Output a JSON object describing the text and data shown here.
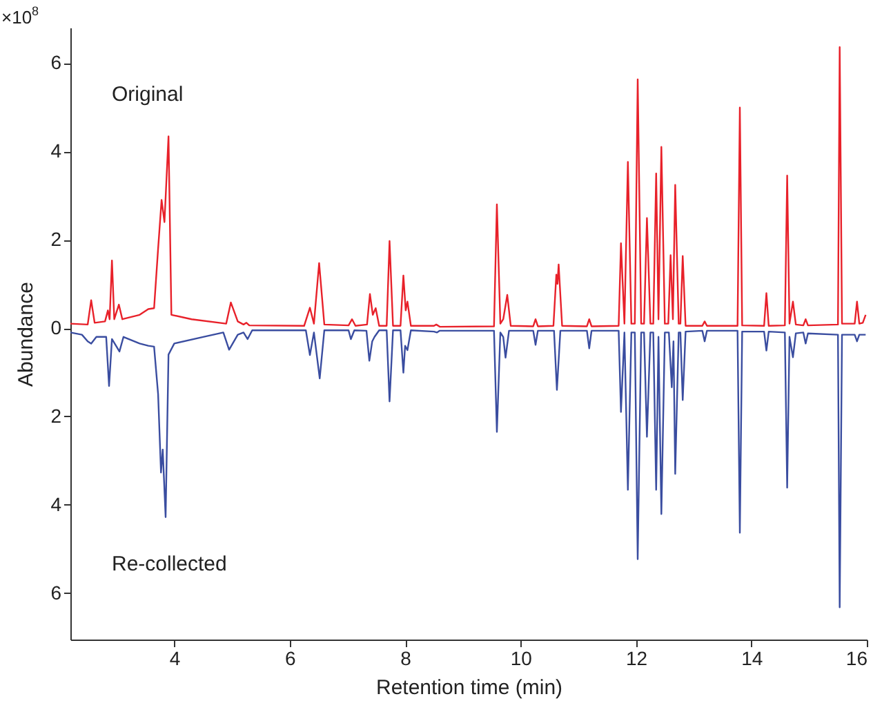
{
  "chart_data": {
    "type": "line",
    "xlabel": "Retention time (min)",
    "ylabel": "Abundance",
    "annotations": [
      "×10$^{8}$"
    ],
    "xlim": [
      2.2,
      16
    ],
    "xticks": [
      4,
      6,
      8,
      10,
      12,
      14,
      16
    ],
    "ylim": [
      -7.05,
      6.8
    ],
    "yticks": [
      {
        "value": -6,
        "label": "6"
      },
      {
        "value": -4,
        "label": "4"
      },
      {
        "value": -2,
        "label": "2"
      },
      {
        "value": 0,
        "label": "0"
      },
      {
        "value": 2,
        "label": "2"
      },
      {
        "value": 4,
        "label": "4"
      },
      {
        "value": 6,
        "label": "6"
      }
    ],
    "grid": false,
    "legend": false,
    "series": [
      {
        "name": "Original",
        "color": "#e8212a",
        "x": [
          2.2,
          2.5,
          2.56,
          2.62,
          2.8,
          2.85,
          2.88,
          2.92,
          2.96,
          3.04,
          3.1,
          3.4,
          3.55,
          3.65,
          3.72,
          3.78,
          3.83,
          3.9,
          3.95,
          4.3,
          4.9,
          4.98,
          5.1,
          5.2,
          5.25,
          5.3,
          6.25,
          6.35,
          6.42,
          6.51,
          6.6,
          7.02,
          7.08,
          7.14,
          7.34,
          7.39,
          7.44,
          7.49,
          7.55,
          7.68,
          7.73,
          7.79,
          7.92,
          7.97,
          8.01,
          8.04,
          8.1,
          8.5,
          8.54,
          8.6,
          9.54,
          9.59,
          9.65,
          9.7,
          9.77,
          9.83,
          10.22,
          10.26,
          10.3,
          10.57,
          10.62,
          10.64,
          10.66,
          10.72,
          11.15,
          11.19,
          11.23,
          11.7,
          11.74,
          11.8,
          11.86,
          11.92,
          11.98,
          12.03,
          12.09,
          12.14,
          12.19,
          12.25,
          12.3,
          12.35,
          12.39,
          12.44,
          12.5,
          12.56,
          12.6,
          12.64,
          12.68,
          12.74,
          12.77,
          12.81,
          12.86,
          13.15,
          13.19,
          13.23,
          13.76,
          13.8,
          13.84,
          14.22,
          14.26,
          14.3,
          14.58,
          14.62,
          14.66,
          14.72,
          14.77,
          14.9,
          14.94,
          14.98,
          15.5,
          15.53,
          15.57,
          15.79,
          15.83,
          15.87,
          15.93,
          15.98
        ],
        "values": [
          0.1,
          0.08,
          0.63,
          0.12,
          0.15,
          0.4,
          0.2,
          1.53,
          0.2,
          0.53,
          0.2,
          0.3,
          0.43,
          0.45,
          1.8,
          2.9,
          2.4,
          4.34,
          0.3,
          0.2,
          0.1,
          0.58,
          0.15,
          0.08,
          0.12,
          0.06,
          0.05,
          0.46,
          0.1,
          1.47,
          0.08,
          0.06,
          0.2,
          0.05,
          0.08,
          0.77,
          0.3,
          0.45,
          0.05,
          0.05,
          1.97,
          0.05,
          0.05,
          1.19,
          0.4,
          0.6,
          0.05,
          0.05,
          0.08,
          0.03,
          0.04,
          2.8,
          0.1,
          0.2,
          0.75,
          0.05,
          0.04,
          0.2,
          0.04,
          0.05,
          1.21,
          1.0,
          1.44,
          0.05,
          0.04,
          0.2,
          0.04,
          0.05,
          1.92,
          0.1,
          3.76,
          0.1,
          0.1,
          5.63,
          0.1,
          0.1,
          2.49,
          0.1,
          0.1,
          3.5,
          0.2,
          4.1,
          0.1,
          0.1,
          1.65,
          0.2,
          3.24,
          0.1,
          0.1,
          1.63,
          0.05,
          0.05,
          0.15,
          0.05,
          0.05,
          4.99,
          0.06,
          0.05,
          0.79,
          0.05,
          0.06,
          3.45,
          0.1,
          0.6,
          0.08,
          0.06,
          0.2,
          0.06,
          0.08,
          6.36,
          0.1,
          0.1,
          0.6,
          0.1,
          0.12,
          0.3
        ]
      },
      {
        "name": "Re-collected",
        "color": "#3a4da0",
        "x": [
          2.2,
          2.4,
          2.5,
          2.56,
          2.65,
          2.82,
          2.87,
          2.92,
          3.05,
          3.12,
          3.4,
          3.55,
          3.65,
          3.72,
          3.77,
          3.8,
          3.85,
          3.9,
          4.0,
          4.5,
          4.85,
          4.95,
          5.1,
          5.2,
          5.27,
          5.35,
          6.28,
          6.35,
          6.42,
          6.52,
          6.6,
          7.02,
          7.06,
          7.12,
          7.33,
          7.38,
          7.43,
          7.47,
          7.55,
          7.68,
          7.73,
          7.79,
          7.92,
          7.97,
          8.0,
          8.04,
          8.1,
          8.5,
          8.55,
          8.6,
          9.54,
          9.59,
          9.65,
          9.7,
          9.74,
          9.8,
          10.22,
          10.26,
          10.3,
          10.58,
          10.63,
          10.69,
          11.15,
          11.19,
          11.23,
          11.7,
          11.74,
          11.8,
          11.86,
          11.92,
          11.98,
          12.03,
          12.09,
          12.14,
          12.19,
          12.25,
          12.3,
          12.35,
          12.39,
          12.44,
          12.5,
          12.57,
          12.62,
          12.65,
          12.68,
          12.74,
          12.77,
          12.81,
          12.86,
          13.15,
          13.19,
          13.23,
          13.76,
          13.8,
          13.84,
          14.22,
          14.26,
          14.3,
          14.58,
          14.62,
          14.66,
          14.72,
          14.77,
          14.9,
          14.94,
          14.98,
          15.5,
          15.53,
          15.57,
          15.79,
          15.83,
          15.87,
          15.98
        ],
        "values": [
          -0.1,
          -0.15,
          -0.3,
          -0.35,
          -0.2,
          -0.2,
          -1.31,
          -0.25,
          -0.53,
          -0.2,
          -0.35,
          -0.4,
          -0.42,
          -1.5,
          -3.27,
          -2.75,
          -4.28,
          -0.6,
          -0.35,
          -0.2,
          -0.1,
          -0.49,
          -0.15,
          -0.1,
          -0.25,
          -0.05,
          -0.05,
          -0.61,
          -0.1,
          -1.14,
          -0.05,
          -0.05,
          -0.25,
          -0.05,
          -0.06,
          -0.74,
          -0.3,
          -0.2,
          -0.05,
          -0.05,
          -1.66,
          -0.05,
          -0.05,
          -1.01,
          -0.4,
          -0.5,
          -0.05,
          -0.08,
          -0.1,
          -0.06,
          -0.06,
          -2.35,
          -0.1,
          -0.2,
          -0.67,
          -0.06,
          -0.06,
          -0.38,
          -0.06,
          -0.06,
          -1.4,
          -0.06,
          -0.06,
          -0.46,
          -0.06,
          -0.06,
          -1.9,
          -0.1,
          -3.66,
          -0.1,
          -0.1,
          -5.23,
          -0.1,
          -0.1,
          -2.46,
          -0.1,
          -0.1,
          -3.66,
          -0.2,
          -4.21,
          -0.1,
          -0.1,
          -1.34,
          -0.3,
          -3.3,
          -0.1,
          -0.1,
          -1.63,
          -0.08,
          -0.06,
          -0.3,
          -0.06,
          -0.06,
          -4.63,
          -0.08,
          -0.08,
          -0.51,
          -0.08,
          -0.1,
          -3.61,
          -0.2,
          -0.66,
          -0.12,
          -0.1,
          -0.35,
          -0.12,
          -0.15,
          -6.32,
          -0.15,
          -0.15,
          -0.3,
          -0.15,
          -0.15
        ]
      }
    ]
  }
}
